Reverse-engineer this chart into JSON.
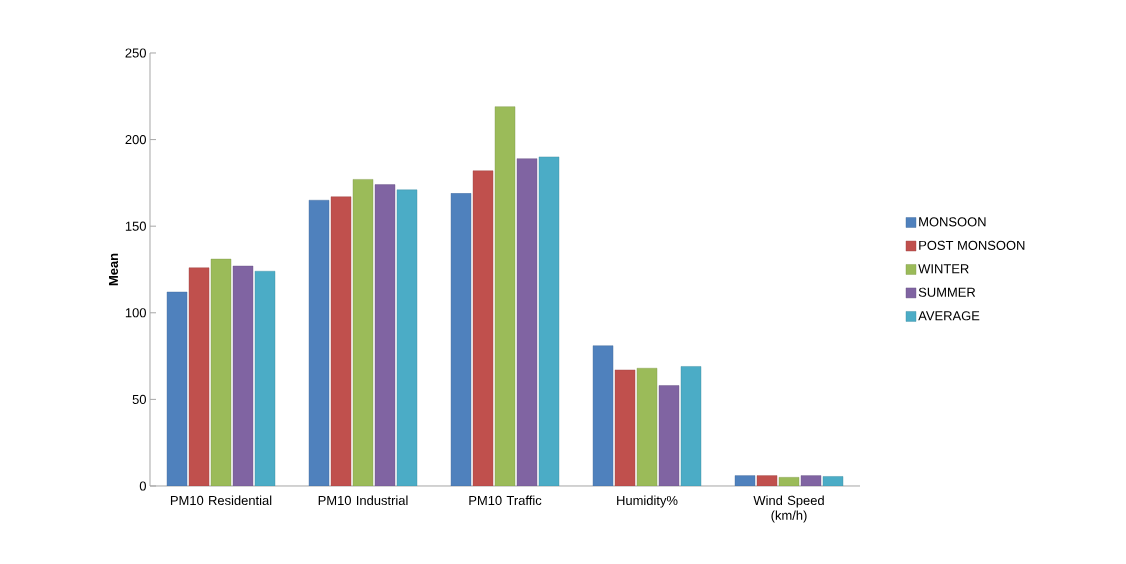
{
  "chart_data": {
    "type": "bar",
    "ylabel": "Mean",
    "categories": [
      "PM10 Residential",
      "PM10 Industrial",
      "PM10 Traffic",
      "Humidity%",
      "Wind Speed (km/h)"
    ],
    "series": [
      {
        "name": "MONSOON",
        "color": "#4f81bd",
        "values": [
          112,
          165,
          169,
          81,
          6
        ]
      },
      {
        "name": "POST MONSOON",
        "color": "#c0504d",
        "values": [
          126,
          167,
          182,
          67,
          6
        ]
      },
      {
        "name": "WINTER",
        "color": "#9bbb59",
        "values": [
          131,
          177,
          219,
          68,
          5
        ]
      },
      {
        "name": "SUMMER",
        "color": "#8064a2",
        "values": [
          127,
          174,
          189,
          58,
          6
        ]
      },
      {
        "name": "AVERAGE",
        "color": "#4bacc6",
        "values": [
          124,
          171,
          190,
          69,
          5.5
        ]
      }
    ],
    "ylim": [
      0,
      250
    ],
    "yticks": [
      0,
      50,
      100,
      150,
      200,
      250
    ],
    "grid": false,
    "legend": "right"
  }
}
